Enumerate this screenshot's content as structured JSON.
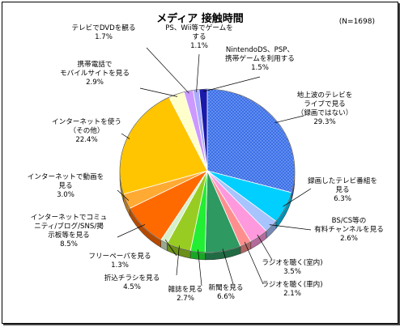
{
  "chart_data": {
    "type": "pie",
    "title": "メディア 接触時間",
    "note": "(N=1698)",
    "slices": [
      {
        "lines": [
          "地上波のテレビを",
          "ライブで見る",
          "（録画ではない）",
          "29.3%"
        ],
        "value": 29.3,
        "color": "#3b6fe6",
        "pattern": "dots"
      },
      {
        "lines": [
          "録画したテレビ番組を",
          "見る",
          "6.3%"
        ],
        "value": 6.3,
        "color": "#00cfff"
      },
      {
        "lines": [
          "BS/CS等の",
          "有料チャンネルを見る",
          "2.6%"
        ],
        "value": 2.6,
        "color": "#a7c4ff"
      },
      {
        "lines": [
          "ラジオを聴く(室内)",
          "3.5%"
        ],
        "value": 3.5,
        "color": "#ff99dd"
      },
      {
        "lines": [
          "ラジオを聴く(車内)",
          "2.1%"
        ],
        "value": 2.1,
        "color": "#ff8f8f"
      },
      {
        "lines": [
          "新聞を見る",
          "6.6%"
        ],
        "value": 6.6,
        "color": "#2e9960"
      },
      {
        "lines": [
          "雑誌を見る",
          "2.7%"
        ],
        "value": 2.7,
        "color": "#22ee33"
      },
      {
        "lines": [
          "折込チラシを見る",
          "4.5%"
        ],
        "value": 4.5,
        "color": "#99cc22"
      },
      {
        "lines": [
          "フリーペーパを見る",
          "1.3%"
        ],
        "value": 1.3,
        "color": "#d7f0cc"
      },
      {
        "lines": [
          "インターネットでコミュ",
          "ニティ/ブログ/SNS/掲",
          "示板等を見る",
          "8.5%"
        ],
        "value": 8.5,
        "color": "#ff6a00"
      },
      {
        "lines": [
          "インターネットで動画を",
          "見る",
          "3.0%"
        ],
        "value": 3.0,
        "color": "#ffaa33"
      },
      {
        "lines": [
          "インターネットを使う",
          "（その他）",
          "22.4%"
        ],
        "value": 22.4,
        "color": "#ffc500"
      },
      {
        "lines": [
          "携帯電話で",
          "モバイルサイトを見る",
          "2.9%"
        ],
        "value": 2.9,
        "color": "#ffffcc"
      },
      {
        "lines": [
          "テレビでDVDを観る",
          "1.7%"
        ],
        "value": 1.7,
        "color": "#cc99ff"
      },
      {
        "lines": [
          "PS、Wii等でゲームを",
          "する",
          "1.1%"
        ],
        "value": 1.1,
        "color": "#aaaaff"
      },
      {
        "lines": [
          "NintendoDS、PSP、",
          "携帯ゲームを利用する",
          "1.5%"
        ],
        "value": 1.5,
        "color": "#1a1aaa"
      }
    ]
  }
}
